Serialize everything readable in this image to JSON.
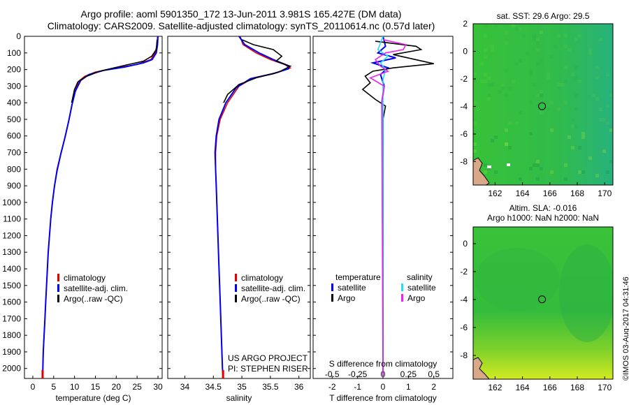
{
  "header": {
    "line1": "Argo profile: aoml 5901350_172 13-Jun-2011 3.981S 165.427E (DM data)",
    "line2": "Climatology: CARS2009. Satellite-adjusted climatology: synTS_20110614.nc (0.57d later)"
  },
  "credit": "©IMOS 03-Aug-2017 04:31:46",
  "colors": {
    "climatology": "#e00000",
    "satellite": "#0000ee",
    "argo": "#000000",
    "salinity_satellite": "#22e0f0",
    "salinity_argo": "#ee22ee",
    "map_green": "#33c433",
    "land": "#d8a888"
  },
  "chart_data": [
    {
      "type": "line",
      "name": "temperature-profile",
      "xlabel": "temperature (deg C)",
      "ylabel": "",
      "xlim": [
        -2,
        31
      ],
      "ylim": [
        2060,
        0
      ],
      "xticks": [
        0,
        5,
        10,
        15,
        20,
        25,
        30
      ],
      "yticks": [
        0,
        100,
        200,
        300,
        400,
        500,
        600,
        700,
        800,
        900,
        1000,
        1100,
        1200,
        1300,
        1400,
        1500,
        1600,
        1700,
        1800,
        1900,
        2000
      ],
      "legend": [
        "climatology",
        "satellite-adj. clim.",
        "Argo(..raw -QC)"
      ],
      "series": [
        {
          "name": "climatology",
          "color": "#e00000",
          "points": [
            [
              29.9,
              0
            ],
            [
              29.8,
              50
            ],
            [
              29.3,
              100
            ],
            [
              28.3,
              140
            ],
            [
              25,
              170
            ],
            [
              20,
              190
            ],
            [
              15,
              215
            ],
            [
              12.5,
              240
            ],
            [
              11,
              270
            ],
            [
              10.3,
              320
            ],
            [
              9.5,
              400
            ],
            [
              8.7,
              500
            ],
            [
              7.8,
              600
            ],
            [
              6.8,
              700
            ],
            [
              5.8,
              800
            ],
            [
              5.2,
              900
            ],
            [
              4.7,
              1000
            ],
            [
              4.3,
              1100
            ],
            [
              4.0,
              1200
            ],
            [
              3.7,
              1300
            ],
            [
              3.5,
              1400
            ],
            [
              3.3,
              1500
            ],
            [
              3.1,
              1600
            ],
            [
              2.9,
              1700
            ],
            [
              2.7,
              1800
            ],
            [
              2.5,
              1900
            ],
            [
              2.4,
              2000
            ],
            [
              2.35,
              2050
            ]
          ]
        },
        {
          "name": "satellite-adj. clim.",
          "color": "#0000ee",
          "points": [
            [
              30.0,
              0
            ],
            [
              29.9,
              50
            ],
            [
              29.6,
              100
            ],
            [
              28.6,
              140
            ],
            [
              26.5,
              160
            ],
            [
              22,
              185
            ],
            [
              17,
              205
            ],
            [
              13.5,
              230
            ],
            [
              11.5,
              265
            ],
            [
              10.2,
              330
            ],
            [
              9.4,
              410
            ],
            [
              8.6,
              510
            ],
            [
              7.7,
              610
            ],
            [
              6.7,
              710
            ],
            [
              5.8,
              810
            ],
            [
              5.2,
              900
            ],
            [
              4.7,
              1000
            ],
            [
              4.3,
              1100
            ],
            [
              4.0,
              1200
            ],
            [
              3.7,
              1300
            ],
            [
              3.5,
              1400
            ],
            [
              3.3,
              1500
            ],
            [
              3.1,
              1600
            ],
            [
              2.9,
              1700
            ],
            [
              2.7,
              1800
            ],
            [
              2.5,
              1900
            ],
            [
              2.4,
              2000
            ],
            [
              2.35,
              2050
            ]
          ]
        },
        {
          "name": "Argo(..raw -QC)",
          "color": "#000000",
          "points": [
            [
              29.8,
              20
            ],
            [
              29.6,
              80
            ],
            [
              28.5,
              120
            ],
            [
              26.5,
              150
            ],
            [
              22,
              175
            ],
            [
              16,
              210
            ],
            [
              12.5,
              245
            ],
            [
              10.8,
              275
            ],
            [
              10,
              320
            ],
            [
              9.3,
              400
            ]
          ]
        }
      ]
    },
    {
      "type": "line",
      "name": "salinity-profile",
      "xlabel": "salinity",
      "ylabel": "",
      "xlim": [
        33.7,
        36.2
      ],
      "ylim": [
        2060,
        0
      ],
      "xticks": [
        34,
        34.5,
        35,
        35.5,
        36
      ],
      "legend": [
        "climatology",
        "satellite-adj. clim.",
        "Argo(..raw -QC)"
      ],
      "annotation": [
        "US ARGO PROJECT",
        "PI: STEPHEN RISER"
      ],
      "series": [
        {
          "name": "climatology",
          "color": "#e00000",
          "points": [
            [
              34.97,
              0
            ],
            [
              35.02,
              50
            ],
            [
              35.25,
              100
            ],
            [
              35.5,
              140
            ],
            [
              35.75,
              170
            ],
            [
              35.85,
              190
            ],
            [
              35.6,
              220
            ],
            [
              35.2,
              250
            ],
            [
              34.95,
              300
            ],
            [
              34.75,
              400
            ],
            [
              34.62,
              500
            ],
            [
              34.56,
              600
            ],
            [
              34.54,
              700
            ],
            [
              34.54,
              800
            ],
            [
              34.55,
              900
            ],
            [
              34.56,
              1000
            ],
            [
              34.58,
              1200
            ],
            [
              34.6,
              1400
            ],
            [
              34.62,
              1600
            ],
            [
              34.64,
              1800
            ],
            [
              34.66,
              2000
            ],
            [
              34.67,
              2050
            ]
          ]
        },
        {
          "name": "satellite-adj. clim.",
          "color": "#0000ee",
          "points": [
            [
              34.95,
              0
            ],
            [
              35.05,
              50
            ],
            [
              35.3,
              100
            ],
            [
              35.55,
              140
            ],
            [
              35.8,
              175
            ],
            [
              35.82,
              195
            ],
            [
              35.55,
              225
            ],
            [
              35.15,
              255
            ],
            [
              34.9,
              310
            ],
            [
              34.72,
              400
            ],
            [
              34.6,
              500
            ],
            [
              34.55,
              600
            ],
            [
              34.53,
              700
            ],
            [
              34.54,
              800
            ],
            [
              34.55,
              900
            ],
            [
              34.56,
              1000
            ],
            [
              34.58,
              1200
            ],
            [
              34.6,
              1400
            ],
            [
              34.62,
              1600
            ],
            [
              34.64,
              1800
            ],
            [
              34.66,
              2000
            ],
            [
              34.67,
              2050
            ]
          ]
        },
        {
          "name": "Argo(..raw -QC)",
          "color": "#000000",
          "points": [
            [
              35.0,
              20
            ],
            [
              35.2,
              50
            ],
            [
              35.55,
              80
            ],
            [
              35.7,
              120
            ],
            [
              35.6,
              150
            ],
            [
              35.85,
              180
            ],
            [
              35.65,
              215
            ],
            [
              35.25,
              250
            ],
            [
              34.95,
              290
            ],
            [
              34.75,
              350
            ],
            [
              34.68,
              400
            ]
          ]
        }
      ]
    },
    {
      "type": "line",
      "name": "difference-profile",
      "xlabel_top": "S difference from climatology",
      "xlabel": "T difference from climatology",
      "xlim": [
        -2.75,
        2.75
      ],
      "ylim": [
        2060,
        0
      ],
      "xticks_bottom": [
        -2,
        -1,
        0,
        1,
        2
      ],
      "xticks_top": [
        "-0.5",
        "-0.25",
        "0",
        "0.25",
        "0.5"
      ],
      "legend_left": {
        "title": "temperature",
        "items": [
          "satellite",
          "Argo"
        ]
      },
      "legend_right": {
        "title": "salinity",
        "items": [
          "satellite",
          "Argo"
        ]
      },
      "series": [
        {
          "name": "temperature satellite",
          "color": "#0000ee",
          "points": [
            [
              0,
              0
            ],
            [
              0.1,
              60
            ],
            [
              -0.2,
              100
            ],
            [
              0.5,
              130
            ],
            [
              -0.4,
              160
            ],
            [
              0.2,
              190
            ],
            [
              -0.1,
              230
            ],
            [
              0.05,
              300
            ],
            [
              -0.05,
              400
            ],
            [
              0,
              500
            ],
            [
              0,
              2050
            ]
          ]
        },
        {
          "name": "temperature Argo",
          "color": "#000000",
          "points": [
            [
              -0.3,
              30
            ],
            [
              1.3,
              60
            ],
            [
              1.5,
              80
            ],
            [
              0.4,
              110
            ],
            [
              2.0,
              165
            ],
            [
              0.4,
              190
            ],
            [
              -0.4,
              210
            ],
            [
              -0.7,
              240
            ],
            [
              -0.5,
              280
            ],
            [
              -0.8,
              320
            ],
            [
              -0.3,
              380
            ],
            [
              0.1,
              420
            ],
            [
              0,
              500
            ],
            [
              0,
              2050
            ]
          ]
        },
        {
          "name": "salinity satellite",
          "color": "#22e0f0",
          "points": [
            [
              0.0,
              0
            ],
            [
              -0.1,
              40
            ],
            [
              -0.2,
              80
            ],
            [
              0.2,
              120
            ],
            [
              -0.1,
              160
            ],
            [
              0.1,
              200
            ],
            [
              0,
              260
            ],
            [
              0,
              2050
            ]
          ]
        },
        {
          "name": "salinity Argo",
          "color": "#ee22ee",
          "points": [
            [
              0.0,
              20
            ],
            [
              0.9,
              50
            ],
            [
              0.8,
              80
            ],
            [
              0.1,
              100
            ],
            [
              -0.3,
              140
            ],
            [
              -0.1,
              180
            ],
            [
              0.2,
              210
            ],
            [
              -0.5,
              250
            ],
            [
              0.05,
              300
            ],
            [
              -0.05,
              400
            ],
            [
              0,
              2050
            ]
          ]
        }
      ]
    },
    {
      "type": "heatmap",
      "name": "sst-map",
      "title": "sat. SST: 29.6  Argo: 29.5",
      "xticks": [
        162,
        164,
        166,
        168,
        170
      ],
      "yticks": [
        2,
        0,
        -2,
        -4,
        -6,
        -8
      ],
      "xlim": [
        160.4,
        170.6
      ],
      "ylim": [
        -9.7,
        2
      ],
      "marker": {
        "lon": 165.427,
        "lat": -3.981
      }
    },
    {
      "type": "heatmap",
      "name": "sla-map",
      "title_line1": "Altim. SLA: -0.016",
      "title_line2": "Argo h1000: NaN h2000: NaN",
      "xticks": [
        162,
        164,
        166,
        168,
        170
      ],
      "yticks": [
        0,
        -2,
        -4,
        -6,
        -8
      ],
      "xlim": [
        160.4,
        170.6
      ],
      "ylim": [
        -9.7,
        1.2
      ],
      "marker": {
        "lon": 165.427,
        "lat": -3.981
      }
    }
  ]
}
